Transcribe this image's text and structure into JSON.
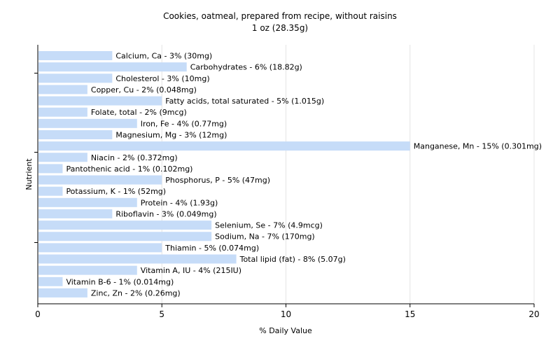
{
  "chart_data": {
    "type": "bar",
    "orientation": "horizontal",
    "title": "Cookies, oatmeal, prepared from recipe, without raisins",
    "subtitle": "1 oz (28.35g)",
    "xlabel": "% Daily Value",
    "ylabel": "Nutrient",
    "xlim": [
      0,
      20
    ],
    "xticks": [
      "0",
      "5",
      "10",
      "15",
      "20"
    ],
    "grid": "vertical",
    "bar_color": "#c6dcf8",
    "categories": [
      "Calcium, Ca",
      "Carbohydrates",
      "Cholesterol",
      "Copper, Cu",
      "Fatty acids, total saturated",
      "Folate, total",
      "Iron, Fe",
      "Magnesium, Mg",
      "Manganese, Mn",
      "Niacin",
      "Pantothenic acid",
      "Phosphorus, P",
      "Potassium, K",
      "Protein",
      "Riboflavin",
      "Selenium, Se",
      "Sodium, Na",
      "Thiamin",
      "Total lipid (fat)",
      "Vitamin A, IU",
      "Vitamin B-6",
      "Zinc, Zn"
    ],
    "values": [
      3,
      6,
      3,
      2,
      5,
      2,
      4,
      3,
      15,
      2,
      1,
      5,
      1,
      4,
      3,
      7,
      7,
      5,
      8,
      4,
      1,
      2
    ],
    "labels": [
      "Calcium, Ca - 3% (30mg)",
      "Carbohydrates - 6% (18.82g)",
      "Cholesterol - 3% (10mg)",
      "Copper, Cu - 2% (0.048mg)",
      "Fatty acids, total saturated - 5% (1.015g)",
      "Folate, total - 2% (9mcg)",
      "Iron, Fe - 4% (0.77mg)",
      "Magnesium, Mg - 3% (12mg)",
      "Manganese, Mn - 15% (0.301mg)",
      "Niacin - 2% (0.372mg)",
      "Pantothenic acid - 1% (0.102mg)",
      "Phosphorus, P - 5% (47mg)",
      "Potassium, K - 1% (52mg)",
      "Protein - 4% (1.93g)",
      "Riboflavin - 3% (0.049mg)",
      "Selenium, Se - 7% (4.9mcg)",
      "Sodium, Na - 7% (170mg)",
      "Thiamin - 5% (0.074mg)",
      "Total lipid (fat) - 8% (5.07g)",
      "Vitamin A, IU - 4% (215IU)",
      "Vitamin B-6 - 1% (0.014mg)",
      "Zinc, Zn - 2% (0.26mg)"
    ]
  }
}
